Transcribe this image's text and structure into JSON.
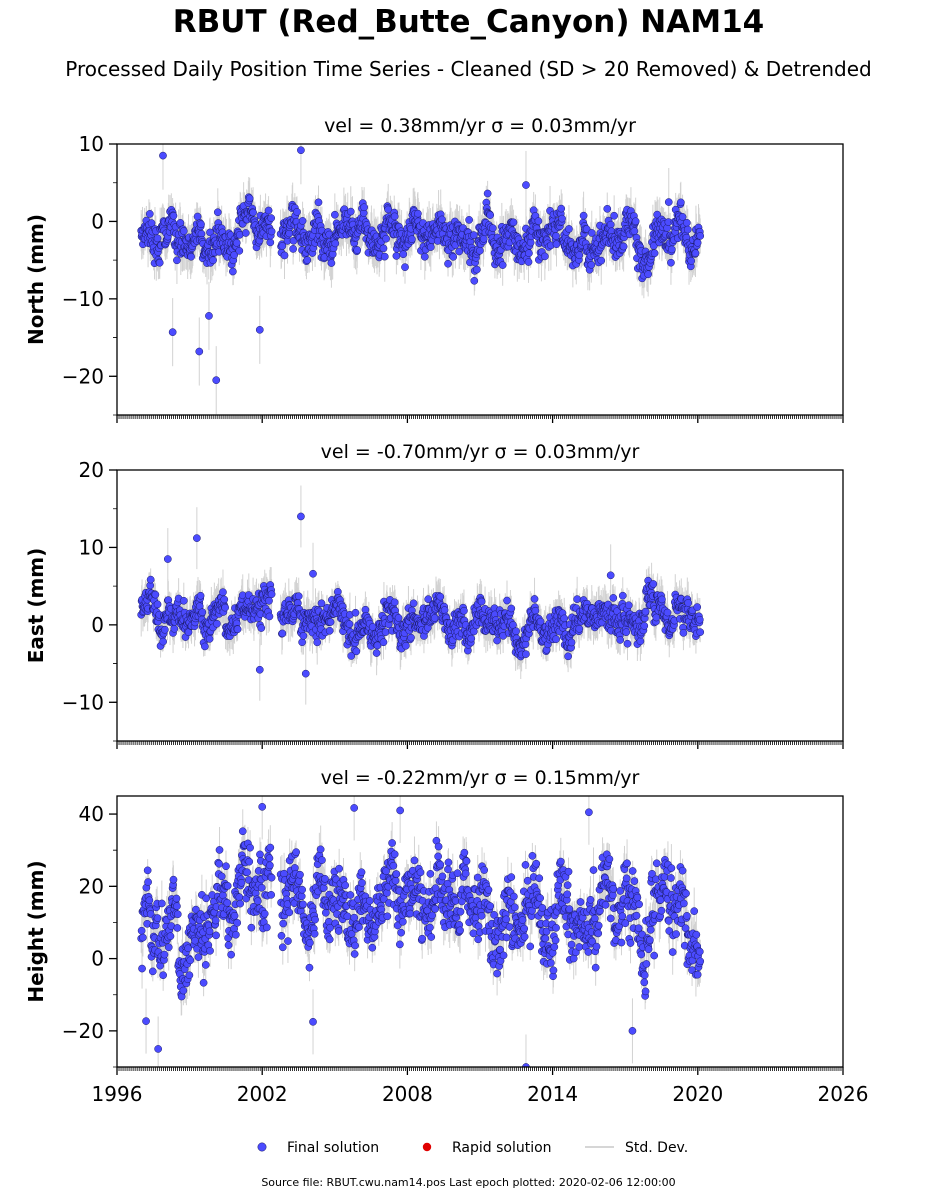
{
  "title": "RBUT (Red_Butte_Canyon) NAM14",
  "subtitle": "Processed Daily Position Time Series - Cleaned (SD > 20 Removed) & Detrended",
  "footer": "Source file: RBUT.cwu.nam14.pos  Last epoch plotted: 2020-02-06 12:00:00",
  "colors": {
    "final": "#4b4bff",
    "final_edge": "#1a1a66",
    "rapid": "#e00000",
    "stddev": "#c8c8c8"
  },
  "legend": {
    "final": "Final solution",
    "rapid": "Rapid solution",
    "stddev": "Std. Dev."
  },
  "chart_data": [
    {
      "type": "scatter",
      "id": "north",
      "title": "vel = 0.38mm/yr   σ = 0.03mm/yr",
      "ylabel": "North (mm)",
      "xlim": [
        1996,
        2026
      ],
      "ylim": [
        -25,
        10
      ],
      "xticks": [
        1996,
        2002,
        2008,
        2014,
        2020,
        2026
      ],
      "yticks": [
        10,
        0,
        -10,
        -20
      ],
      "data_span": [
        1997.0,
        2020.1
      ],
      "series": [
        {
          "x": [
            1997.0,
            1998.0,
            1999.0,
            2000.0,
            2001.0,
            2002.0,
            2003.0,
            2004.0,
            2005.0,
            2006.0,
            2007.0,
            2008.0,
            2009.0,
            2010.0,
            2011.0,
            2012.0,
            2013.0,
            2014.0,
            2015.0,
            2016.0,
            2017.0,
            2018.0,
            2019.0,
            2020.0
          ],
          "y": [
            -2.0,
            -2.5,
            -3.0,
            -2.5,
            -2.0,
            -2.0,
            -3.0,
            -2.0,
            -2.0,
            -3.0,
            -2.0,
            -1.5,
            -1.5,
            -2.0,
            -2.5,
            -2.5,
            -1.5,
            -1.5,
            -1.5,
            -2.0,
            -2.0,
            -3.0,
            -2.5,
            -2.5
          ]
        }
      ],
      "outliers": [
        {
          "x": 1997.9,
          "y": 8.5
        },
        {
          "x": 2003.6,
          "y": 9.2
        },
        {
          "x": 1998.3,
          "y": -14.3
        },
        {
          "x": 1999.4,
          "y": -16.8
        },
        {
          "x": 1999.8,
          "y": -12.2
        },
        {
          "x": 2000.1,
          "y": -20.5
        },
        {
          "x": 2001.9,
          "y": -14.0
        },
        {
          "x": 2012.9,
          "y": 4.7
        },
        {
          "x": 2018.8,
          "y": 2.5
        }
      ]
    },
    {
      "type": "scatter",
      "id": "east",
      "title": "vel = -0.70mm/yr   σ = 0.03mm/yr",
      "ylabel": "East (mm)",
      "xlim": [
        1996,
        2026
      ],
      "ylim": [
        -15,
        20
      ],
      "xticks": [
        1996,
        2002,
        2008,
        2014,
        2020,
        2026
      ],
      "yticks": [
        20,
        10,
        0,
        -10
      ],
      "data_span": [
        1997.0,
        2020.1
      ],
      "series": [
        {
          "x": [
            1997.0,
            1998.0,
            1999.0,
            2000.0,
            2001.0,
            2002.0,
            2003.0,
            2004.0,
            2005.0,
            2006.0,
            2007.0,
            2008.0,
            2009.0,
            2010.0,
            2011.0,
            2012.0,
            2013.0,
            2014.0,
            2015.0,
            2016.0,
            2017.0,
            2018.0,
            2019.0,
            2020.0
          ],
          "y": [
            2.0,
            2.0,
            1.5,
            1.0,
            1.0,
            2.5,
            1.5,
            0.5,
            0.5,
            0.0,
            0.5,
            0.5,
            0.5,
            0.5,
            0.5,
            0.0,
            -1.0,
            -0.5,
            0.5,
            1.0,
            1.0,
            1.5,
            1.5,
            2.0
          ]
        }
      ],
      "outliers": [
        {
          "x": 2003.6,
          "y": 14.0
        },
        {
          "x": 1999.3,
          "y": 11.2
        },
        {
          "x": 1998.1,
          "y": 8.5
        },
        {
          "x": 2004.1,
          "y": 6.6
        },
        {
          "x": 2001.9,
          "y": -5.8
        },
        {
          "x": 2003.8,
          "y": -6.3
        },
        {
          "x": 2016.4,
          "y": 6.4
        }
      ]
    },
    {
      "type": "scatter",
      "id": "height",
      "title": "vel = -0.22mm/yr   σ = 0.15mm/yr",
      "ylabel": "Height (mm)",
      "xlim": [
        1996,
        2026
      ],
      "ylim": [
        -30,
        45
      ],
      "xticks": [
        1996,
        2002,
        2008,
        2014,
        2020,
        2026
      ],
      "yticks": [
        40,
        20,
        0,
        -20
      ],
      "data_span": [
        1997.0,
        2020.1
      ],
      "series": [
        {
          "x": [
            1997.0,
            1998.0,
            1999.0,
            2000.0,
            2001.0,
            2002.0,
            2003.0,
            2004.0,
            2005.0,
            2006.0,
            2007.0,
            2008.0,
            2009.0,
            2010.0,
            2011.0,
            2012.0,
            2013.0,
            2014.0,
            2015.0,
            2016.0,
            2017.0,
            2018.0,
            2019.0,
            2020.0
          ],
          "y": [
            8.0,
            5.0,
            10.0,
            12.0,
            10.0,
            20.0,
            18.0,
            17.0,
            15.0,
            14.0,
            15.0,
            16.0,
            14.0,
            13.0,
            8.0,
            12.0,
            12.0,
            13.0,
            12.0,
            14.0,
            11.0,
            10.0,
            11.0,
            10.0
          ]
        }
      ],
      "outliers": [
        {
          "x": 1997.7,
          "y": -25.0
        },
        {
          "x": 1997.2,
          "y": -17.3
        },
        {
          "x": 2004.1,
          "y": -17.5
        },
        {
          "x": 2012.9,
          "y": -30.0
        },
        {
          "x": 2017.3,
          "y": -20.0
        },
        {
          "x": 2002.0,
          "y": 42.0
        },
        {
          "x": 2005.8,
          "y": 41.7
        },
        {
          "x": 2015.5,
          "y": 40.5
        },
        {
          "x": 2007.7,
          "y": 41.0
        }
      ]
    }
  ]
}
